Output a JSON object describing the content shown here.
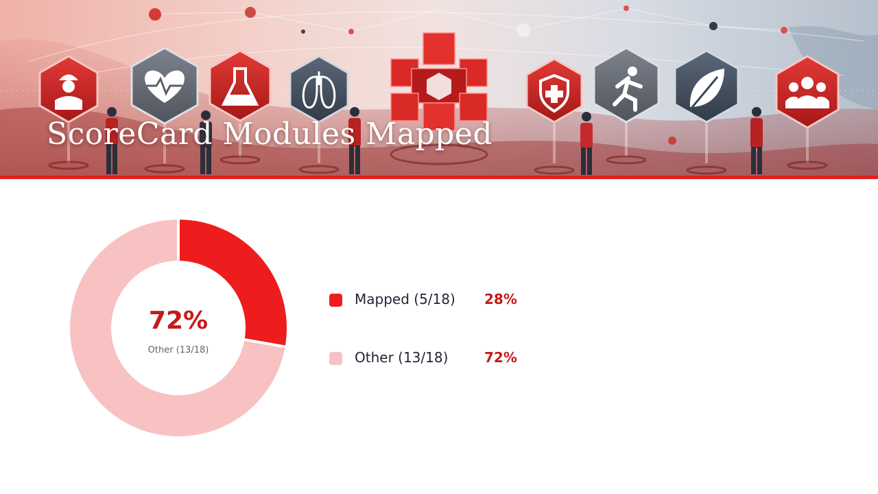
{
  "header": {
    "title": "ScoreCard Modules Mapped"
  },
  "banner_icons": [
    "worker-icon",
    "heart-pulse-icon",
    "flask-icon",
    "lungs-icon",
    "cube-cluster-icon",
    "shield-cross-icon",
    "runner-icon",
    "leaf-icon",
    "people-group-icon"
  ],
  "chart_data": {
    "type": "pie",
    "style": "donut",
    "categories": [
      "Mapped (5/18)",
      "Other (13/18)"
    ],
    "values": [
      5,
      13
    ],
    "percent_labels": [
      "28%",
      "72%"
    ],
    "colors": [
      "#ee1c1c",
      "#f8c2c2"
    ],
    "center_value": "72%",
    "center_label": "Other (13/18)",
    "legend_position": "right"
  },
  "colors": {
    "accent": "#e0201c",
    "percent_text": "#c61a1a"
  }
}
